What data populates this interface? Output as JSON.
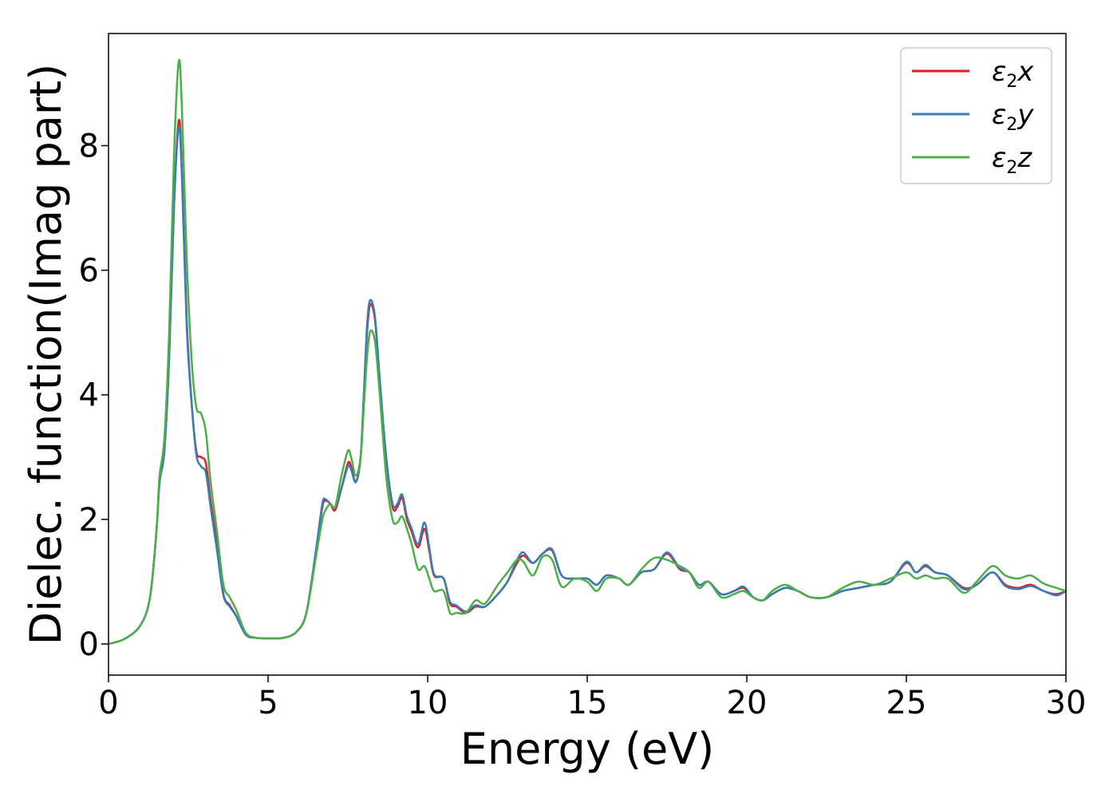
{
  "chart_data": {
    "type": "line",
    "xlabel": "Energy (eV)",
    "ylabel": "Dielec. function(Imag part)",
    "xlim": [
      0,
      30
    ],
    "ylim": [
      -0.5,
      9.8
    ],
    "xticks": [
      0,
      5,
      10,
      15,
      20,
      25,
      30
    ],
    "yticks": [
      0,
      2,
      4,
      6,
      8
    ],
    "grid": false,
    "legend_position": "top-right",
    "series": [
      {
        "name": "ε2x",
        "legend": {
          "base": "ε",
          "sub": "2",
          "tail": "x"
        },
        "color": "#e41a1c",
        "points": [
          [
            0,
            0
          ],
          [
            0.5,
            0.08
          ],
          [
            1.0,
            0.3
          ],
          [
            1.3,
            0.75
          ],
          [
            1.5,
            1.8
          ],
          [
            1.6,
            2.6
          ],
          [
            1.75,
            3.1
          ],
          [
            1.9,
            4.6
          ],
          [
            2.05,
            7.0
          ],
          [
            2.2,
            8.4
          ],
          [
            2.3,
            7.6
          ],
          [
            2.45,
            5.2
          ],
          [
            2.6,
            3.9
          ],
          [
            2.75,
            3.1
          ],
          [
            2.9,
            3.0
          ],
          [
            3.05,
            2.9
          ],
          [
            3.2,
            2.3
          ],
          [
            3.4,
            1.6
          ],
          [
            3.6,
            0.8
          ],
          [
            3.8,
            0.62
          ],
          [
            4.0,
            0.45
          ],
          [
            4.3,
            0.15
          ],
          [
            4.6,
            0.1
          ],
          [
            5.0,
            0.09
          ],
          [
            5.5,
            0.1
          ],
          [
            5.9,
            0.2
          ],
          [
            6.2,
            0.5
          ],
          [
            6.5,
            1.5
          ],
          [
            6.7,
            2.2
          ],
          [
            6.8,
            2.3
          ],
          [
            6.95,
            2.25
          ],
          [
            7.1,
            2.15
          ],
          [
            7.3,
            2.5
          ],
          [
            7.5,
            2.9
          ],
          [
            7.6,
            2.85
          ],
          [
            7.75,
            2.6
          ],
          [
            7.9,
            3.0
          ],
          [
            8.0,
            4.0
          ],
          [
            8.1,
            5.0
          ],
          [
            8.2,
            5.45
          ],
          [
            8.35,
            5.2
          ],
          [
            8.5,
            4.2
          ],
          [
            8.7,
            3.0
          ],
          [
            8.9,
            2.2
          ],
          [
            9.05,
            2.2
          ],
          [
            9.2,
            2.35
          ],
          [
            9.35,
            2.0
          ],
          [
            9.5,
            1.8
          ],
          [
            9.7,
            1.55
          ],
          [
            9.9,
            1.85
          ],
          [
            10.05,
            1.5
          ],
          [
            10.2,
            1.1
          ],
          [
            10.5,
            1.05
          ],
          [
            10.7,
            0.65
          ],
          [
            10.9,
            0.6
          ],
          [
            11.2,
            0.5
          ],
          [
            11.5,
            0.6
          ],
          [
            11.8,
            0.6
          ],
          [
            12.2,
            0.8
          ],
          [
            12.5,
            1.0
          ],
          [
            12.8,
            1.3
          ],
          [
            13.0,
            1.42
          ],
          [
            13.3,
            1.3
          ],
          [
            13.6,
            1.45
          ],
          [
            13.9,
            1.5
          ],
          [
            14.2,
            1.1
          ],
          [
            14.6,
            1.05
          ],
          [
            15.0,
            1.05
          ],
          [
            15.3,
            0.95
          ],
          [
            15.6,
            1.1
          ],
          [
            16.0,
            1.05
          ],
          [
            16.3,
            0.95
          ],
          [
            16.7,
            1.15
          ],
          [
            17.1,
            1.2
          ],
          [
            17.5,
            1.45
          ],
          [
            17.9,
            1.2
          ],
          [
            18.2,
            1.15
          ],
          [
            18.5,
            0.95
          ],
          [
            18.8,
            1.0
          ],
          [
            19.2,
            0.8
          ],
          [
            19.6,
            0.85
          ],
          [
            19.9,
            0.9
          ],
          [
            20.2,
            0.75
          ],
          [
            20.5,
            0.7
          ],
          [
            20.8,
            0.8
          ],
          [
            21.2,
            0.9
          ],
          [
            21.6,
            0.85
          ],
          [
            22.0,
            0.75
          ],
          [
            22.5,
            0.75
          ],
          [
            23.0,
            0.85
          ],
          [
            23.5,
            0.9
          ],
          [
            24.0,
            0.95
          ],
          [
            24.5,
            1.0
          ],
          [
            25.0,
            1.3
          ],
          [
            25.3,
            1.15
          ],
          [
            25.6,
            1.25
          ],
          [
            25.9,
            1.15
          ],
          [
            26.3,
            1.1
          ],
          [
            26.8,
            0.9
          ],
          [
            27.2,
            0.95
          ],
          [
            27.7,
            1.15
          ],
          [
            28.1,
            0.95
          ],
          [
            28.5,
            0.9
          ],
          [
            28.9,
            0.95
          ],
          [
            29.3,
            0.85
          ],
          [
            29.7,
            0.8
          ],
          [
            30.0,
            0.85
          ]
        ]
      },
      {
        "name": "ε2y",
        "legend": {
          "base": "ε",
          "sub": "2",
          "tail": "y"
        },
        "color": "#377eb8",
        "points": [
          [
            0,
            0
          ],
          [
            0.5,
            0.08
          ],
          [
            1.0,
            0.3
          ],
          [
            1.3,
            0.75
          ],
          [
            1.5,
            1.8
          ],
          [
            1.6,
            2.6
          ],
          [
            1.75,
            3.1
          ],
          [
            1.9,
            4.6
          ],
          [
            2.05,
            7.0
          ],
          [
            2.2,
            8.3
          ],
          [
            2.3,
            7.5
          ],
          [
            2.45,
            5.1
          ],
          [
            2.6,
            3.9
          ],
          [
            2.75,
            3.05
          ],
          [
            2.9,
            2.85
          ],
          [
            3.05,
            2.75
          ],
          [
            3.2,
            2.2
          ],
          [
            3.4,
            1.5
          ],
          [
            3.6,
            0.78
          ],
          [
            3.8,
            0.6
          ],
          [
            4.0,
            0.45
          ],
          [
            4.3,
            0.15
          ],
          [
            4.6,
            0.1
          ],
          [
            5.0,
            0.09
          ],
          [
            5.5,
            0.1
          ],
          [
            5.9,
            0.2
          ],
          [
            6.2,
            0.5
          ],
          [
            6.5,
            1.5
          ],
          [
            6.7,
            2.25
          ],
          [
            6.8,
            2.32
          ],
          [
            6.95,
            2.25
          ],
          [
            7.1,
            2.2
          ],
          [
            7.3,
            2.5
          ],
          [
            7.5,
            2.85
          ],
          [
            7.6,
            2.8
          ],
          [
            7.75,
            2.6
          ],
          [
            7.9,
            3.0
          ],
          [
            8.0,
            4.0
          ],
          [
            8.1,
            5.1
          ],
          [
            8.2,
            5.52
          ],
          [
            8.35,
            5.25
          ],
          [
            8.5,
            4.25
          ],
          [
            8.7,
            3.0
          ],
          [
            8.9,
            2.25
          ],
          [
            9.05,
            2.25
          ],
          [
            9.2,
            2.4
          ],
          [
            9.35,
            2.05
          ],
          [
            9.5,
            1.85
          ],
          [
            9.7,
            1.6
          ],
          [
            9.9,
            1.95
          ],
          [
            10.05,
            1.55
          ],
          [
            10.2,
            1.12
          ],
          [
            10.5,
            1.05
          ],
          [
            10.7,
            0.68
          ],
          [
            10.9,
            0.62
          ],
          [
            11.2,
            0.52
          ],
          [
            11.5,
            0.62
          ],
          [
            11.8,
            0.6
          ],
          [
            12.2,
            0.8
          ],
          [
            12.5,
            1.0
          ],
          [
            12.8,
            1.35
          ],
          [
            13.0,
            1.47
          ],
          [
            13.3,
            1.3
          ],
          [
            13.6,
            1.45
          ],
          [
            13.9,
            1.52
          ],
          [
            14.2,
            1.1
          ],
          [
            14.6,
            1.05
          ],
          [
            15.0,
            1.05
          ],
          [
            15.3,
            0.95
          ],
          [
            15.6,
            1.1
          ],
          [
            16.0,
            1.05
          ],
          [
            16.3,
            0.95
          ],
          [
            16.7,
            1.15
          ],
          [
            17.1,
            1.2
          ],
          [
            17.5,
            1.47
          ],
          [
            17.9,
            1.22
          ],
          [
            18.2,
            1.15
          ],
          [
            18.5,
            0.95
          ],
          [
            18.8,
            1.0
          ],
          [
            19.2,
            0.8
          ],
          [
            19.6,
            0.85
          ],
          [
            19.9,
            0.92
          ],
          [
            20.2,
            0.75
          ],
          [
            20.5,
            0.7
          ],
          [
            20.8,
            0.8
          ],
          [
            21.2,
            0.9
          ],
          [
            21.6,
            0.85
          ],
          [
            22.0,
            0.75
          ],
          [
            22.5,
            0.75
          ],
          [
            23.0,
            0.85
          ],
          [
            23.5,
            0.9
          ],
          [
            24.0,
            0.95
          ],
          [
            24.5,
            1.0
          ],
          [
            25.0,
            1.32
          ],
          [
            25.3,
            1.15
          ],
          [
            25.6,
            1.27
          ],
          [
            25.9,
            1.15
          ],
          [
            26.3,
            1.1
          ],
          [
            26.8,
            0.88
          ],
          [
            27.2,
            0.95
          ],
          [
            27.7,
            1.15
          ],
          [
            28.1,
            0.93
          ],
          [
            28.5,
            0.88
          ],
          [
            28.9,
            0.93
          ],
          [
            29.3,
            0.85
          ],
          [
            29.7,
            0.78
          ],
          [
            30.0,
            0.85
          ]
        ]
      },
      {
        "name": "ε2z",
        "legend": {
          "base": "ε",
          "sub": "2",
          "tail": "z"
        },
        "color": "#4daf4a",
        "points": [
          [
            0,
            0
          ],
          [
            0.5,
            0.08
          ],
          [
            1.0,
            0.3
          ],
          [
            1.3,
            0.75
          ],
          [
            1.5,
            1.8
          ],
          [
            1.6,
            2.7
          ],
          [
            1.75,
            3.3
          ],
          [
            1.9,
            5.0
          ],
          [
            2.05,
            7.8
          ],
          [
            2.2,
            9.35
          ],
          [
            2.3,
            8.6
          ],
          [
            2.45,
            6.2
          ],
          [
            2.6,
            4.6
          ],
          [
            2.75,
            3.8
          ],
          [
            2.9,
            3.7
          ],
          [
            3.05,
            3.4
          ],
          [
            3.2,
            2.6
          ],
          [
            3.4,
            1.8
          ],
          [
            3.6,
            0.95
          ],
          [
            3.8,
            0.75
          ],
          [
            4.0,
            0.55
          ],
          [
            4.3,
            0.18
          ],
          [
            4.6,
            0.1
          ],
          [
            5.0,
            0.09
          ],
          [
            5.5,
            0.1
          ],
          [
            5.9,
            0.2
          ],
          [
            6.2,
            0.5
          ],
          [
            6.5,
            1.4
          ],
          [
            6.7,
            2.0
          ],
          [
            6.8,
            2.15
          ],
          [
            6.95,
            2.25
          ],
          [
            7.1,
            2.2
          ],
          [
            7.3,
            2.7
          ],
          [
            7.5,
            3.1
          ],
          [
            7.6,
            3.0
          ],
          [
            7.75,
            2.7
          ],
          [
            7.9,
            3.0
          ],
          [
            8.0,
            3.8
          ],
          [
            8.1,
            4.6
          ],
          [
            8.2,
            5.02
          ],
          [
            8.35,
            4.85
          ],
          [
            8.5,
            4.0
          ],
          [
            8.7,
            2.7
          ],
          [
            8.9,
            2.0
          ],
          [
            9.05,
            1.95
          ],
          [
            9.2,
            2.05
          ],
          [
            9.35,
            1.85
          ],
          [
            9.5,
            1.6
          ],
          [
            9.7,
            1.2
          ],
          [
            9.9,
            1.25
          ],
          [
            10.05,
            1.05
          ],
          [
            10.2,
            0.85
          ],
          [
            10.5,
            0.85
          ],
          [
            10.7,
            0.5
          ],
          [
            10.9,
            0.5
          ],
          [
            11.2,
            0.5
          ],
          [
            11.5,
            0.7
          ],
          [
            11.8,
            0.65
          ],
          [
            12.2,
            0.95
          ],
          [
            12.5,
            1.15
          ],
          [
            12.8,
            1.35
          ],
          [
            13.0,
            1.32
          ],
          [
            13.3,
            1.1
          ],
          [
            13.6,
            1.4
          ],
          [
            13.9,
            1.35
          ],
          [
            14.2,
            0.92
          ],
          [
            14.6,
            1.05
          ],
          [
            15.0,
            1.0
          ],
          [
            15.3,
            0.85
          ],
          [
            15.6,
            1.05
          ],
          [
            16.0,
            1.05
          ],
          [
            16.3,
            0.95
          ],
          [
            16.7,
            1.2
          ],
          [
            17.1,
            1.38
          ],
          [
            17.5,
            1.35
          ],
          [
            17.9,
            1.25
          ],
          [
            18.2,
            1.15
          ],
          [
            18.5,
            0.9
          ],
          [
            18.8,
            1.0
          ],
          [
            19.2,
            0.75
          ],
          [
            19.6,
            0.8
          ],
          [
            19.9,
            0.85
          ],
          [
            20.2,
            0.75
          ],
          [
            20.5,
            0.7
          ],
          [
            20.8,
            0.85
          ],
          [
            21.2,
            0.95
          ],
          [
            21.6,
            0.85
          ],
          [
            22.0,
            0.75
          ],
          [
            22.5,
            0.75
          ],
          [
            23.0,
            0.9
          ],
          [
            23.5,
            1.0
          ],
          [
            24.0,
            0.95
          ],
          [
            24.5,
            1.05
          ],
          [
            25.0,
            1.15
          ],
          [
            25.3,
            1.05
          ],
          [
            25.6,
            1.1
          ],
          [
            25.9,
            1.05
          ],
          [
            26.3,
            1.05
          ],
          [
            26.8,
            0.82
          ],
          [
            27.2,
            1.0
          ],
          [
            27.7,
            1.25
          ],
          [
            28.1,
            1.1
          ],
          [
            28.5,
            1.05
          ],
          [
            28.9,
            1.1
          ],
          [
            29.3,
            0.97
          ],
          [
            29.7,
            0.9
          ],
          [
            30.0,
            0.85
          ]
        ]
      }
    ]
  }
}
